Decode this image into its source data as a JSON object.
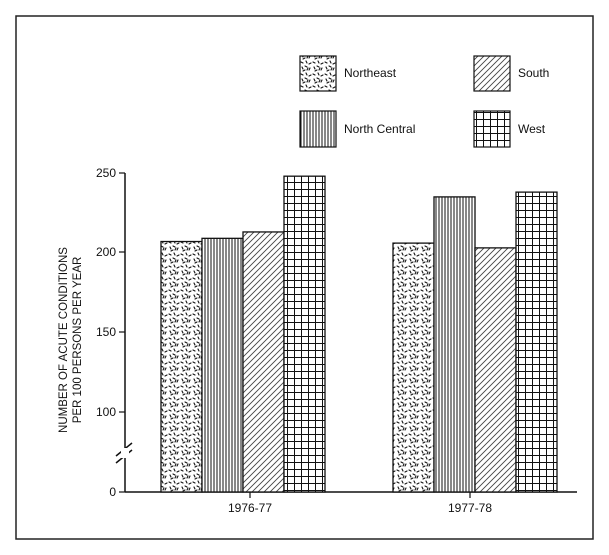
{
  "chart_data": {
    "type": "bar",
    "ylabel_line1": "NUMBER OF ACUTE CONDITIONS",
    "ylabel_line2": "PER 100 PERSONS PER YEAR",
    "categories": [
      "1976-77",
      "1977-78"
    ],
    "y_ticks": [
      "0",
      "100",
      "150",
      "200",
      "250"
    ],
    "axis_break": true,
    "ylim": [
      0,
      250
    ],
    "legend_placement": "top",
    "series": [
      {
        "name": "Northeast",
        "pattern": "speckle",
        "values": [
          207,
          206
        ]
      },
      {
        "name": "North Central",
        "pattern": "vertical-lines",
        "values": [
          209,
          235
        ]
      },
      {
        "name": "South",
        "pattern": "diagonal-lines",
        "values": [
          213,
          203
        ]
      },
      {
        "name": "West",
        "pattern": "grid",
        "values": [
          248,
          238
        ]
      }
    ]
  }
}
